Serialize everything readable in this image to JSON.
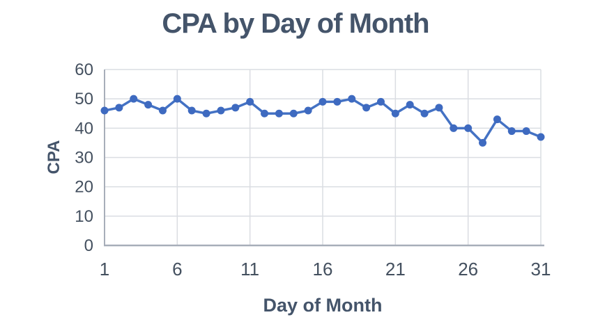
{
  "chart_data": {
    "type": "line",
    "title": "CPA by Day of Month",
    "xlabel": "Day of Month",
    "ylabel": "CPA",
    "series_name": "CPA",
    "x": [
      1,
      2,
      3,
      4,
      5,
      6,
      7,
      8,
      9,
      10,
      11,
      12,
      13,
      14,
      15,
      16,
      17,
      18,
      19,
      20,
      21,
      22,
      23,
      24,
      25,
      26,
      27,
      28,
      29,
      30,
      31
    ],
    "values": [
      46,
      47,
      50,
      48,
      46,
      50,
      46,
      45,
      46,
      47,
      49,
      45,
      45,
      45,
      46,
      49,
      49,
      50,
      47,
      49,
      45,
      48,
      45,
      47,
      40,
      40,
      35,
      43,
      39,
      39,
      37
    ],
    "xticks": [
      1,
      6,
      11,
      16,
      21,
      26,
      31
    ],
    "yticks": [
      0,
      10,
      20,
      30,
      40,
      50,
      60
    ],
    "xlim": [
      1,
      31
    ],
    "ylim": [
      0,
      60
    ],
    "grid": true,
    "legend": "none",
    "marker": "circle",
    "colors": {
      "line": "#4472C4",
      "marker": "#3E6AC0",
      "gridline": "#DADDE2",
      "axis_line": "#A7AEB9",
      "tick_text": "#44505F",
      "title_text": "#44546A"
    }
  }
}
